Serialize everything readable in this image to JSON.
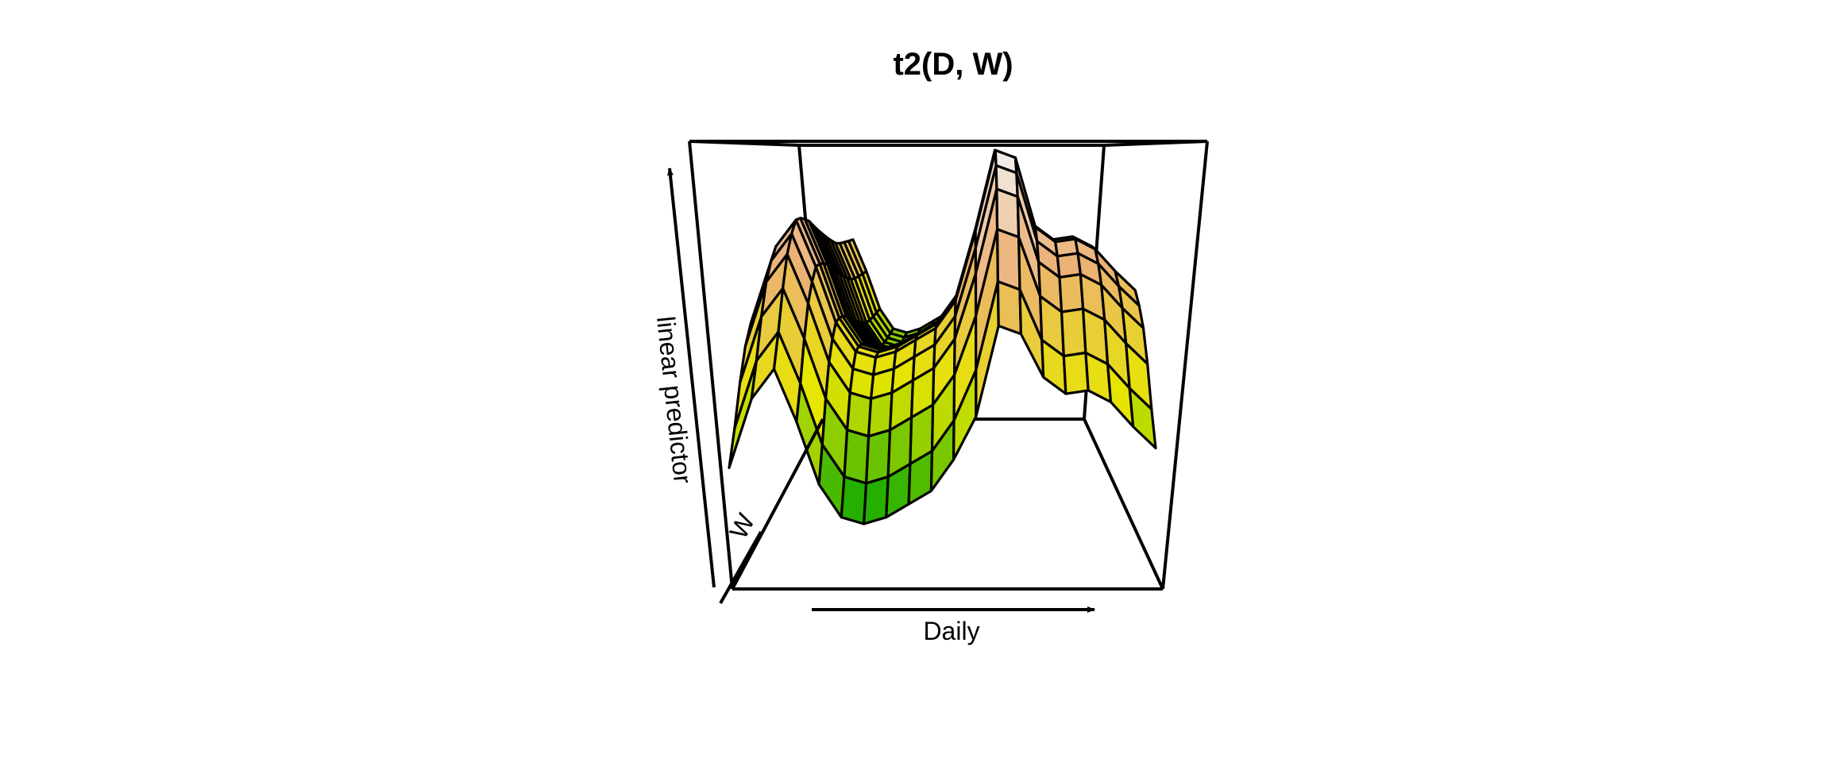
{
  "chart_data": {
    "type": "surface",
    "title": "t2(D, W)",
    "xlabel": "Daily",
    "ylabel": "W",
    "zlabel": "linear predictor",
    "function": "t2(D, W)",
    "grid": false,
    "colors": {
      "low": "#00a600",
      "mid": "#e6e600",
      "high": "#ecb176",
      "top": "#f2f2f2",
      "edge": "#000000"
    },
    "x_profile_by_daily": [
      0.0,
      0.42,
      0.6,
      0.28,
      -0.1,
      -0.3,
      -0.34,
      -0.3,
      -0.22,
      -0.14,
      0.05,
      0.4,
      0.95,
      0.9,
      0.55,
      0.45,
      0.47,
      0.4,
      0.25,
      0.12
    ],
    "w_profile": [
      -0.35,
      -0.15,
      0.1,
      0.3,
      0.42,
      0.5,
      0.5,
      0.48,
      0.45,
      0.4,
      0.35,
      0.3,
      0.25,
      0.2,
      0.15,
      0.12,
      0.1,
      0.08,
      0.06
    ]
  }
}
